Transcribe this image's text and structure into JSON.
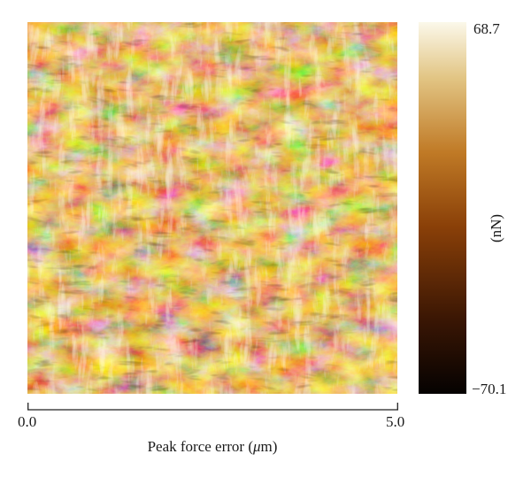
{
  "figure": {
    "image_description_name": "afm-peak-force-error-map",
    "colorbar": {
      "max_label": "68.7",
      "min_label": "−70.1",
      "unit_label": "(nN)",
      "colors": [
        "#050201",
        "#3a1604",
        "#8a4008",
        "#c07a26",
        "#e2c584",
        "#fbf8ea"
      ]
    },
    "x_axis": {
      "start_label": "0.0",
      "end_label": "5.0",
      "title_prefix": "Peak force error (",
      "title_mu": "μ",
      "title_suffix": "m)"
    }
  }
}
